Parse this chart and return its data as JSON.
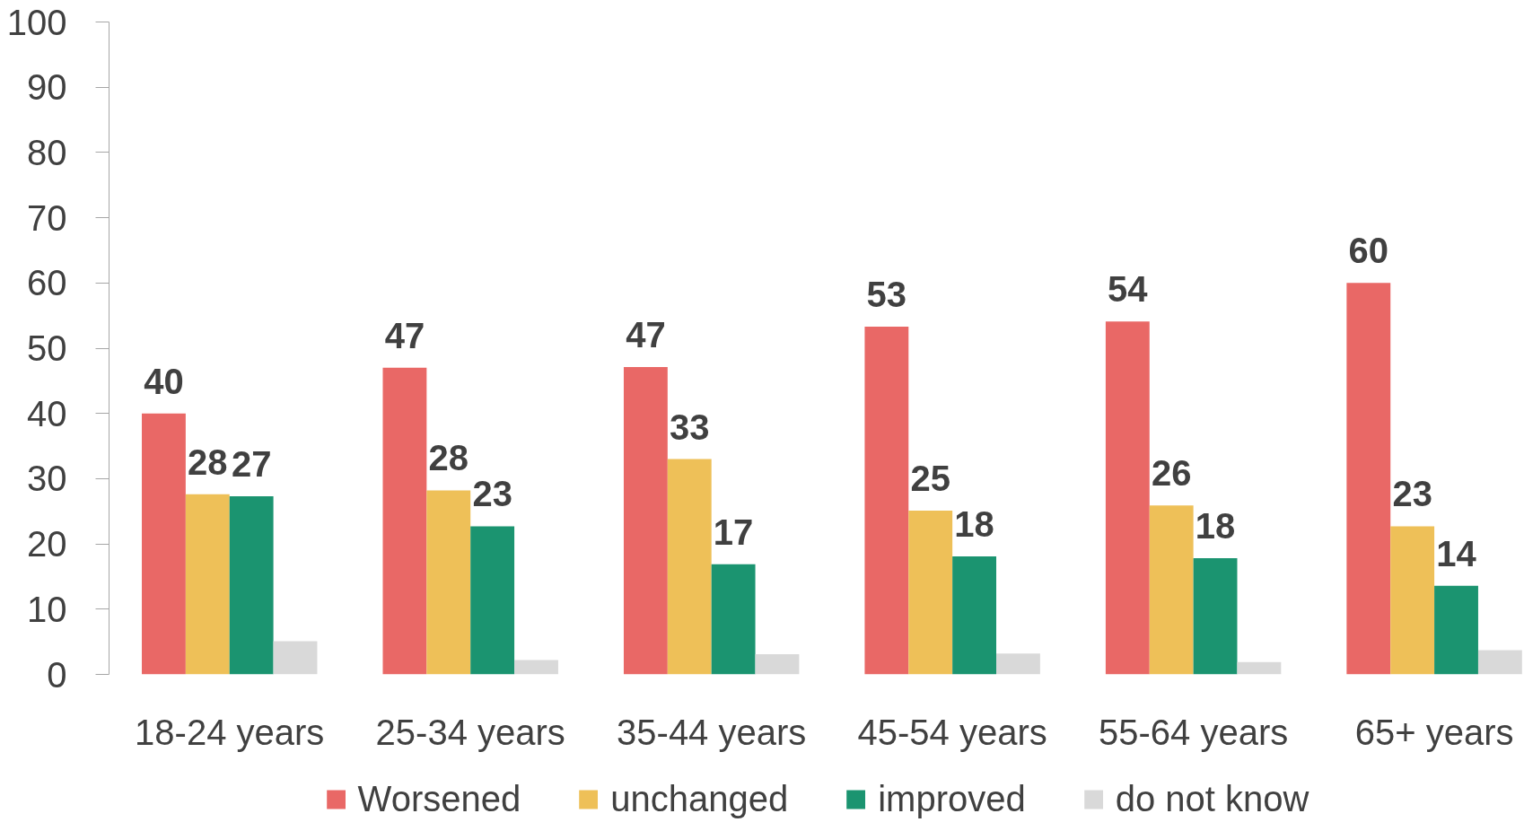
{
  "chart_data": {
    "type": "bar",
    "categories": [
      "18-24 years",
      "25-34 years",
      "35-44 years",
      "45-54 years",
      "55-64 years",
      "65+ years"
    ],
    "series": [
      {
        "name": "Worsened",
        "color": "#e96866",
        "values": [
          40,
          47,
          47.1,
          53.3,
          54.1,
          60
        ],
        "value_labels": [
          "40",
          "47",
          "47",
          "53",
          "54",
          "60"
        ]
      },
      {
        "name": "unchanged",
        "color": "#eec058",
        "values": [
          27.6,
          28.2,
          33,
          25.1,
          25.9,
          22.7
        ],
        "value_labels": [
          "28",
          "28",
          "33",
          "25",
          "26",
          "23"
        ]
      },
      {
        "name": "improved",
        "color": "#1b9470",
        "values": [
          27.3,
          22.7,
          16.9,
          18.1,
          17.8,
          13.6
        ],
        "value_labels": [
          "27",
          "23",
          "17",
          "18",
          "18",
          "14"
        ]
      },
      {
        "name": "do not know",
        "color": "#d9d9d9",
        "values": [
          5.1,
          2.2,
          3.1,
          3.2,
          1.9,
          3.7
        ]
      }
    ],
    "ylim": [
      0,
      100
    ],
    "yticks": [
      0,
      10,
      20,
      30,
      40,
      50,
      60,
      70,
      80,
      90,
      100
    ],
    "legend": "bottom"
  }
}
